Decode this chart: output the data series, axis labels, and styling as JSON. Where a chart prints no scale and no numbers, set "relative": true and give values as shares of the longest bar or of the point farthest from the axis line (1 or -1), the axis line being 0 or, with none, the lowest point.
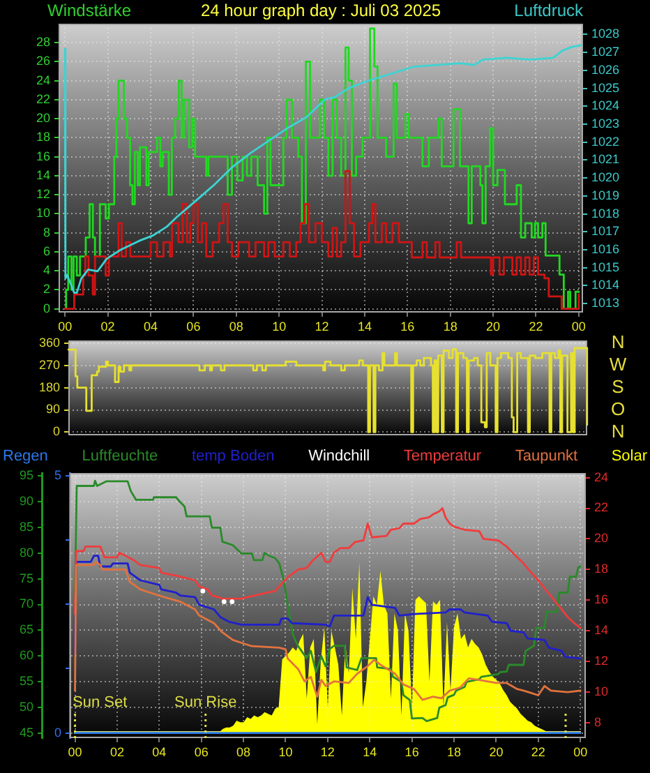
{
  "chart_data": [
    {
      "type": "step",
      "title": "24 hour graph day : Juli 03 2025",
      "ylabel": "Windstärke",
      "y2label": "Luftdruck",
      "xlim": [
        -0.3,
        24.2
      ],
      "xticks": [
        {
          "value": 0,
          "label": "00"
        },
        {
          "value": 2,
          "label": "02"
        },
        {
          "value": 4,
          "label": "04"
        },
        {
          "value": 6,
          "label": "06"
        },
        {
          "value": 8,
          "label": "08"
        },
        {
          "value": 10,
          "label": "10"
        },
        {
          "value": 12,
          "label": "12"
        },
        {
          "value": 14,
          "label": "14"
        },
        {
          "value": 16,
          "label": "16"
        },
        {
          "value": 18,
          "label": "18"
        },
        {
          "value": 20,
          "label": "20"
        },
        {
          "value": 22,
          "label": "22"
        },
        {
          "value": 24,
          "label": "00"
        }
      ],
      "ylim": [
        -0.4,
        30
      ],
      "yticks": [
        0,
        2,
        4,
        6,
        8,
        10,
        12,
        14,
        16,
        18,
        20,
        22,
        24,
        26,
        28
      ],
      "y2lim": [
        1012.5,
        1028.6
      ],
      "y2ticks": [
        1013,
        1014,
        1015,
        1016,
        1017,
        1018,
        1019,
        1020,
        1021,
        1022,
        1023,
        1024,
        1025,
        1026,
        1027,
        1028
      ],
      "grid": true,
      "series": [
        {
          "color": "#22d822",
          "x": [
            0,
            0.05,
            0.15,
            0.3,
            0.4,
            0.55,
            0.7,
            0.97,
            1.15,
            1.3,
            1.4,
            1.63,
            1.9,
            2.05,
            2.3,
            2.4,
            2.5,
            2.75,
            2.9,
            3.04,
            3.15,
            3.26,
            3.4,
            3.5,
            3.8,
            3.91,
            4.3,
            4.45,
            4.56,
            4.85,
            4.99,
            5.15,
            5.32,
            5.45,
            5.55,
            5.8,
            5.95,
            6.08,
            6.6,
            6.7,
            7.6,
            7.8,
            8.05,
            8.3,
            8.5,
            8.7,
            9.0,
            9.3,
            9.45,
            9.6,
            10.2,
            10.35,
            10.6,
            10.9,
            11.07,
            11.25,
            11.45,
            11.9,
            12.1,
            12.3,
            12.5,
            12.7,
            12.9,
            13.1,
            13.25,
            13.4,
            13.6,
            13.9,
            14.25,
            14.45,
            14.6,
            15.0,
            15.35,
            15.5,
            15.9,
            16.05,
            16.7,
            17.0,
            17.45,
            17.6,
            18.15,
            18.45,
            18.85,
            19.0,
            19.4,
            19.5,
            19.65,
            19.85,
            20.0,
            20.2,
            20.55,
            21.1,
            21.3,
            21.5,
            21.8,
            21.95,
            22.1,
            22.3,
            22.45,
            23.1,
            23.3,
            23.5,
            23.6,
            23.85,
            24.0
          ],
          "values": [
            0,
            2,
            5.5,
            2,
            5.5,
            3.5,
            5.5,
            7.5,
            11,
            7.5,
            5.5,
            11,
            9.5,
            11,
            16,
            20,
            24,
            20,
            18,
            13,
            11,
            16.5,
            13,
            17,
            13,
            16.5,
            18,
            15,
            16.5,
            12,
            18,
            20,
            24,
            18,
            22,
            17,
            20,
            16,
            14,
            16,
            12,
            16,
            13.5,
            16,
            14,
            16,
            13,
            10,
            18,
            13,
            18,
            22,
            18,
            16,
            9,
            26,
            18,
            22,
            18,
            14,
            22,
            18,
            14,
            27.5,
            24,
            14,
            16,
            18,
            29.5,
            25.5,
            18,
            16,
            23.7,
            18,
            20.5,
            18,
            15,
            18,
            20,
            15,
            21,
            15,
            9,
            15,
            13,
            9,
            15,
            19,
            13,
            14.6,
            11,
            13,
            7.5,
            9,
            7.5,
            9,
            7.5,
            9,
            5.6,
            3.6,
            0,
            1.8,
            0,
            1.8,
            1.8
          ]
        },
        {
          "color": "#d01414",
          "x": [
            0,
            0.43,
            0.85,
            0.95,
            1.1,
            1.3,
            1.4,
            1.9,
            2.05,
            2.5,
            2.65,
            2.85,
            3.05,
            4.0,
            4.3,
            4.6,
            4.9,
            5.0,
            5.3,
            5.5,
            5.7,
            5.85,
            6.0,
            6.2,
            6.4,
            6.6,
            6.9,
            7.2,
            7.4,
            7.6,
            7.8,
            8.1,
            8.6,
            8.9,
            9.3,
            9.5,
            9.8,
            10.2,
            10.5,
            10.8,
            11.0,
            11.2,
            11.4,
            11.7,
            12.0,
            12.3,
            12.5,
            12.7,
            12.9,
            13.1,
            13.3,
            13.5,
            13.8,
            14.2,
            14.35,
            14.5,
            14.8,
            15.0,
            15.3,
            15.6,
            16.2,
            16.7,
            16.9,
            17.3,
            17.5,
            18.3,
            18.5,
            19.9,
            20.0,
            20.3,
            20.5,
            20.9,
            21.1,
            21.3,
            21.5,
            21.7,
            21.9,
            22.1,
            22.4,
            22.6,
            23.2,
            24.0
          ],
          "values": [
            0,
            1.5,
            3.5,
            5.5,
            3.5,
            1.5,
            5.5,
            3.5,
            5.5,
            9,
            5.5,
            7,
            5.5,
            7,
            5.5,
            7,
            5.5,
            9,
            7,
            11,
            7,
            9,
            11,
            7,
            9,
            5.5,
            7,
            9,
            11,
            7,
            5.5,
            7,
            5.5,
            7,
            5.5,
            7,
            5.5,
            7,
            5.5,
            7,
            9,
            11,
            7,
            9,
            7,
            5.5,
            8.5,
            5.5,
            7,
            14.5,
            9,
            5.5,
            7,
            9,
            11,
            7,
            9,
            7,
            9,
            7,
            5.4,
            7,
            5.4,
            7,
            5.4,
            7,
            5.4,
            3.6,
            5.4,
            3.6,
            5.4,
            3.6,
            5.4,
            3.6,
            5.4,
            3.6,
            5.4,
            3.6,
            3.2,
            1.3,
            0,
            1.5
          ]
        },
        {
          "type": "line",
          "axis": "y2",
          "color": "#3cd4d4",
          "x": [
            0,
            0.02,
            0.1,
            0.43,
            0.55,
            0.76,
            1.08,
            1.52,
            1.95,
            2.6,
            3.47,
            4.12,
            4.77,
            5.2,
            6.08,
            6.95,
            7.81,
            8.68,
            9.55,
            10.42,
            11.29,
            12.16,
            12.59,
            13.24,
            14.11,
            15.2,
            16.28,
            17.37,
            18.46,
            19.11,
            19.53,
            20.63,
            21.71,
            22.8,
            23.23,
            23.67,
            24.1
          ],
          "values": [
            1027.2,
            1014.4,
            1014.6,
            1013.6,
            1013.6,
            1014.4,
            1014.9,
            1014.8,
            1015.5,
            1016.0,
            1016.5,
            1016.8,
            1017.3,
            1017.8,
            1018.7,
            1019.6,
            1020.6,
            1021.4,
            1022.1,
            1022.8,
            1023.4,
            1024.4,
            1024.5,
            1025.0,
            1025.4,
            1025.8,
            1026.2,
            1026.3,
            1026.4,
            1026.3,
            1026.6,
            1026.7,
            1026.6,
            1026.7,
            1027.1,
            1027.3,
            1027.4
          ]
        }
      ]
    },
    {
      "type": "step",
      "ylim": [
        -13,
        371
      ],
      "yticks": [
        0,
        90,
        180,
        270,
        360
      ],
      "annotations": [
        "N",
        "W",
        "S",
        "O",
        "N"
      ],
      "grid": "y",
      "categories": [
        null,
        null,
        null,
        null,
        null,
        null,
        null,
        null,
        null,
        null,
        null,
        null,
        null,
        null,
        null,
        null,
        null,
        null,
        null,
        null,
        null,
        null,
        null,
        null,
        null,
        null,
        null,
        null,
        null,
        null,
        null,
        null,
        null,
        null,
        null,
        null,
        null,
        null,
        null,
        null,
        null,
        null,
        null,
        null,
        null,
        null,
        null,
        null,
        null,
        null,
        null,
        null,
        null,
        null,
        null,
        null,
        null,
        null,
        null,
        null,
        null,
        null,
        null,
        null,
        null,
        null,
        null,
        null,
        null,
        null,
        null,
        null,
        null,
        null,
        null,
        null,
        null,
        null,
        null,
        null,
        null,
        null,
        null,
        null,
        null,
        null,
        null,
        null,
        null,
        null,
        null,
        null,
        null,
        null,
        null,
        null,
        null,
        null,
        null,
        null,
        null,
        null,
        null,
        null,
        null,
        null,
        null,
        null,
        null,
        null,
        null,
        null,
        null,
        null,
        null,
        null,
        null,
        null,
        null,
        null,
        null,
        null,
        null,
        null,
        null,
        null,
        null,
        null,
        null,
        null,
        null,
        null,
        null,
        null,
        null,
        null,
        null,
        null,
        null,
        null,
        null,
        null,
        null,
        null,
        null,
        null,
        null,
        null,
        null,
        null,
        null,
        null,
        null,
        null,
        null,
        null,
        null,
        null,
        null,
        null,
        null,
        null,
        null,
        null,
        null,
        null,
        null,
        null,
        null,
        null,
        null,
        null,
        null,
        null,
        null,
        null,
        null,
        null,
        null,
        null,
        null,
        null,
        null,
        null,
        null,
        null,
        null,
        null,
        null,
        null,
        null,
        null,
        null,
        null,
        null,
        null,
        null,
        null,
        null,
        null,
        null,
        null,
        null,
        null,
        null,
        null,
        null,
        null,
        null,
        null,
        null,
        null,
        null,
        null,
        null,
        null,
        null,
        null,
        null,
        null,
        null,
        null,
        null,
        null,
        null,
        null,
        null,
        null,
        null,
        null,
        null,
        null,
        null,
        null,
        null,
        null,
        null,
        null,
        null,
        null,
        null,
        null,
        null,
        null,
        null,
        null,
        null,
        null,
        null,
        null,
        null,
        null,
        null,
        null,
        null,
        null,
        null,
        null,
        null,
        null,
        null,
        null,
        null,
        null,
        null,
        null,
        null,
        null,
        null,
        null,
        null,
        null,
        null,
        null,
        null,
        null,
        null,
        null,
        null,
        null,
        null,
        null,
        null,
        null,
        null,
        null,
        null,
        null,
        null,
        null
      ],
      "series": [
        {
          "color": "#e6e030",
          "values": [
            334,
            334,
            334,
            334,
            226,
            180,
            180,
            180,
            180,
            180,
            86,
            86,
            86,
            230,
            230,
            230,
            245,
            265,
            265,
            265,
            265,
            285,
            270,
            270,
            270,
            270,
            203,
            203,
            265,
            245,
            245,
            270,
            270,
            270,
            250,
            270,
            270,
            270,
            270,
            270,
            270,
            270,
            270,
            270,
            270,
            270,
            270,
            270,
            270,
            270,
            270,
            270,
            270,
            270,
            270,
            270,
            270,
            270,
            270,
            270,
            270,
            270,
            270,
            270,
            270,
            270,
            270,
            270,
            270,
            270,
            270,
            270,
            270,
            250,
            250,
            250,
            270,
            270,
            270,
            250,
            270,
            270,
            270,
            270,
            270,
            250,
            250,
            270,
            270,
            270,
            270,
            270,
            270,
            270,
            270,
            270,
            270,
            270,
            270,
            270,
            270,
            270,
            270,
            250,
            250,
            270,
            270,
            270,
            250,
            250,
            270,
            270,
            270,
            270,
            270,
            270,
            270,
            270,
            270,
            270,
            270,
            285,
            285,
            285,
            285,
            285,
            285,
            270,
            270,
            270,
            270,
            270,
            270,
            270,
            270,
            270,
            270,
            270,
            270,
            270,
            270,
            270,
            250,
            285,
            285,
            285,
            270,
            270,
            270,
            270,
            270,
            270,
            250,
            250,
            270,
            270,
            270,
            270,
            270,
            270,
            270,
            270,
            290,
            290,
            270,
            270,
            270,
            0,
            270,
            270,
            0,
            270,
            270,
            250,
            250,
            320,
            270,
            270,
            270,
            270,
            270,
            270,
            320,
            270,
            270,
            270,
            270,
            270,
            270,
            270,
            270,
            0,
            270,
            270,
            290,
            290,
            270,
            270,
            300,
            300,
            300,
            300,
            270,
            0,
            290,
            0,
            310,
            310,
            0,
            330,
            330,
            330,
            300,
            300,
            335,
            335,
            0,
            320,
            320,
            320,
            300,
            300,
            0,
            290,
            290,
            290,
            300,
            300,
            270,
            270,
            40,
            40,
            20,
            320,
            320,
            270,
            270,
            270,
            0,
            300,
            300,
            320,
            320,
            320,
            320,
            300,
            300,
            60,
            0,
            0,
            320,
            320,
            300,
            300,
            300,
            300,
            0,
            310,
            310,
            310,
            300,
            300,
            300,
            300,
            320,
            320,
            320,
            320,
            0,
            320,
            320,
            300,
            300,
            330,
            0,
            310,
            310,
            310,
            0,
            0,
            320,
            0,
            340,
            340,
            340,
            340,
            340,
            340,
            340,
            30
          ]
        }
      ]
    },
    {
      "type": "line",
      "legend": "top",
      "xlim": [
        -0.25,
        24.26
      ],
      "xticks": [
        {
          "value": 0,
          "label": "00"
        },
        {
          "value": 2,
          "label": "02"
        },
        {
          "value": 4,
          "label": "04"
        },
        {
          "value": 6,
          "label": "06"
        },
        {
          "value": 8,
          "label": "08"
        },
        {
          "value": 10,
          "label": "10"
        },
        {
          "value": 12,
          "label": "12"
        },
        {
          "value": 14,
          "label": "14"
        },
        {
          "value": 16,
          "label": "16"
        },
        {
          "value": 18,
          "label": "18"
        },
        {
          "value": 20,
          "label": "20"
        },
        {
          "value": 22,
          "label": "22"
        },
        {
          "value": 24,
          "label": "00"
        }
      ],
      "ylim": [
        44.1,
        95.5
      ],
      "yticks": [
        45,
        50,
        55,
        60,
        65,
        70,
        75,
        80,
        85,
        90,
        95
      ],
      "y2lim": [
        7,
        24.3
      ],
      "y2ticks": [
        8,
        10,
        12,
        14,
        16,
        18,
        20,
        22,
        24
      ],
      "y3lim": [
        -0.1,
        5.05
      ],
      "y3ticks": [
        0,
        {
          "value": 1.25,
          "label": null
        },
        {
          "value": 2.5,
          "label": null
        },
        {
          "value": 3.75,
          "label": null
        },
        5
      ],
      "grid": true,
      "ref_lines": [
        {
          "axis": "x",
          "value": 0,
          "label": "Sun Set",
          "color": "#dede48",
          "line_style": "dotted"
        },
        {
          "axis": "x",
          "value": 6.2,
          "label": "Sun Rise",
          "color": "#dede48",
          "line_style": "dotted"
        },
        {
          "axis": "x",
          "value": 23.3,
          "label": null,
          "color": "#dede48",
          "line_style": "dotted"
        }
      ],
      "series": [
        {
          "name": "Regen",
          "color": "#2a78e8",
          "axis": "y3",
          "x": [
            0,
            24
          ],
          "values": [
            0,
            0
          ]
        },
        {
          "name": "Luftfeuchte",
          "color": "#2a8a2a",
          "x": [
            0,
            0.08,
            0.9,
            0.95,
            1.05,
            1.5,
            2.5,
            2.65,
            2.9,
            3.7,
            3.75,
            4.8,
            4.9,
            5.2,
            5.3,
            6.4,
            6.5,
            6.9,
            7.0,
            7.5,
            7.9,
            8.4,
            8.5,
            8.9,
            9.0,
            9.2,
            9.5,
            9.7,
            9.9,
            10.1,
            10.35,
            10.6,
            11.0,
            11.2,
            11.45,
            11.7,
            11.9,
            12.1,
            12.3,
            12.8,
            12.9,
            13.4,
            13.6,
            14.3,
            14.35,
            15.0,
            15.1,
            15.5,
            15.6,
            15.9,
            16.0,
            16.5,
            16.7,
            17.2,
            17.3,
            17.6,
            17.7,
            18.0,
            18.1,
            18.5,
            18.6,
            19.2,
            19.3,
            20.1,
            20.2,
            20.5,
            20.6,
            21.3,
            21.4,
            21.8,
            21.9,
            22.3,
            22.4,
            22.9,
            23.0,
            23.4,
            23.5,
            23.8,
            23.9,
            24.0
          ],
          "values": [
            72.3,
            93,
            93,
            94,
            93,
            93.9,
            93.9,
            92,
            90.3,
            90.3,
            90.8,
            90.8,
            90.3,
            89,
            87.1,
            87.1,
            84.9,
            84.9,
            82.2,
            81.5,
            79.9,
            79.9,
            78.6,
            78.6,
            80,
            79.5,
            79,
            78,
            75,
            70,
            64.1,
            61.9,
            59.6,
            61,
            56.9,
            60,
            58,
            61.4,
            62,
            62,
            57.8,
            57.3,
            59.6,
            59.6,
            57.8,
            57.5,
            56,
            55,
            52.4,
            51.5,
            47.9,
            48,
            47.4,
            48,
            50,
            50.5,
            52,
            52.5,
            53.3,
            54,
            55,
            55.5,
            56,
            56.5,
            56.9,
            57,
            58.3,
            58.3,
            61,
            62,
            65.5,
            65.5,
            68.6,
            68.6,
            72.3,
            72.3,
            75.4,
            75.4,
            77.2,
            77.4
          ]
        },
        {
          "name": "temp Boden",
          "color": "#2020cc",
          "axis": "y2",
          "x": [
            0,
            0.05,
            0.75,
            0.9,
            1.1,
            1.2,
            1.7,
            1.8,
            2.5,
            2.6,
            3.1,
            4.0,
            4.1,
            4.8,
            5.0,
            5.7,
            5.9,
            6.6,
            6.9,
            7.3,
            7.9,
            9.7,
            9.8,
            10.1,
            10.3,
            11.9,
            12.1,
            12.3,
            13.7,
            13.9,
            14.1,
            15.2,
            15.4,
            16.1,
            17.6,
            17.8,
            18.3,
            18.5,
            19.6,
            19.8,
            20.5,
            20.7,
            21.3,
            21.5,
            22.3,
            22.5,
            23.1,
            23.3,
            24.0
          ],
          "values": [
            12.5,
            18.5,
            18.5,
            18.9,
            18.9,
            18.2,
            18.2,
            18.4,
            18.4,
            17.8,
            17.3,
            17.0,
            16.7,
            16.5,
            16.3,
            16.2,
            15.7,
            15.4,
            14.9,
            14.6,
            14.4,
            14.4,
            14.8,
            14.8,
            14.5,
            14.4,
            14.3,
            15.0,
            15.0,
            16.2,
            15.7,
            15.5,
            15.0,
            15.1,
            15.2,
            15.4,
            15.4,
            15.2,
            15.0,
            14.6,
            14.5,
            14.0,
            13.9,
            13.5,
            13.4,
            12.9,
            12.7,
            12.3,
            12.2
          ]
        },
        {
          "name": "Windchill",
          "type": "scatter",
          "marker": "circle",
          "color": "#ffffff",
          "axis": "y2",
          "x": [
            6.07,
            7.08,
            7.46
          ],
          "values": [
            16.6,
            15.9,
            15.9
          ]
        },
        {
          "name": "Temperatur",
          "color": "#f03c3c",
          "axis": "y2",
          "x": [
            0,
            0.05,
            0.4,
            0.5,
            1.2,
            1.4,
            2.0,
            2.1,
            2.4,
            2.8,
            3.1,
            4.0,
            4.1,
            4.8,
            5.7,
            5.9,
            6.3,
            6.5,
            6.8,
            7.0,
            7.9,
            8.2,
            8.8,
            9.5,
            9.7,
            10.1,
            10.6,
            11.0,
            11.3,
            11.7,
            11.9,
            12.1,
            12.3,
            12.6,
            13.0,
            13.3,
            13.7,
            13.9,
            14.1,
            14.8,
            15.0,
            15.4,
            15.6,
            16.1,
            16.4,
            16.8,
            17.0,
            17.3,
            17.45,
            17.6,
            17.8,
            18.0,
            18.5,
            19.2,
            19.4,
            20.1,
            20.3,
            20.5,
            21.0,
            21.3,
            21.6,
            22.0,
            22.4,
            22.7,
            23.0,
            23.4,
            23.8,
            24.0
          ],
          "values": [
            15.1,
            19.2,
            19.2,
            19.5,
            19.5,
            18.8,
            18.8,
            19.1,
            18.9,
            18.6,
            18.3,
            18.1,
            17.8,
            17.6,
            17.3,
            16.9,
            16.7,
            16.3,
            16.2,
            16.1,
            16.1,
            16.2,
            16.4,
            16.6,
            16.9,
            17.5,
            18,
            18.1,
            18.6,
            19.1,
            18.5,
            18.5,
            19.1,
            19.4,
            19.4,
            19.8,
            19.9,
            21,
            20.1,
            20.2,
            20.6,
            20.7,
            21,
            21,
            21.3,
            21.4,
            21.6,
            21.8,
            22,
            21.4,
            21,
            20.8,
            20.6,
            20.5,
            20,
            19.9,
            19.7,
            19.5,
            18.8,
            18.4,
            17.9,
            17.3,
            16.6,
            16.1,
            15.6,
            14.9,
            14.4,
            14.2
          ]
        },
        {
          "name": "Taupunkt",
          "color": "#e2733e",
          "axis": "y2",
          "x": [
            0,
            0.05,
            0.9,
            1.0,
            1.2,
            1.3,
            2.4,
            2.6,
            3.1,
            4.0,
            5.0,
            5.7,
            5.9,
            6.6,
            7.0,
            7.5,
            8.4,
            9.7,
            10.0,
            10.1,
            10.6,
            10.9,
            11.2,
            11.5,
            11.7,
            11.9,
            12.3,
            13.0,
            13.4,
            13.9,
            14.2,
            14.5,
            15.2,
            15.6,
            16.1,
            16.5,
            17.0,
            17.4,
            17.8,
            18.3,
            18.7,
            19.2,
            20.0,
            20.5,
            21.0,
            21.3,
            22.0,
            22.3,
            22.6,
            23.4,
            24.0
          ],
          "values": [
            10.1,
            18.3,
            18.3,
            18.5,
            18.3,
            18.0,
            18.0,
            17.2,
            16.7,
            16.3,
            15.9,
            15.4,
            15.0,
            14.5,
            13.9,
            13.4,
            13.0,
            12.9,
            12.8,
            12.2,
            11.5,
            10.7,
            11.0,
            9.7,
            10.8,
            10.4,
            10.7,
            10.6,
            11.2,
            11.7,
            12.1,
            11.8,
            11.2,
            10.5,
            10.2,
            9.5,
            9.7,
            9.6,
            10.1,
            10.3,
            10.9,
            10.8,
            10.6,
            10.6,
            10.2,
            10.1,
            9.8,
            10.4,
            10.1,
            10.0,
            10.1
          ]
        }
      ]
    },
    {
      "type": "area",
      "relative": true,
      "legend": "top",
      "categories": [
        null,
        null,
        null,
        null,
        null,
        null,
        null,
        null,
        null,
        null,
        null,
        null,
        null,
        null,
        null,
        null,
        null,
        null,
        null,
        null,
        null,
        null,
        null,
        null,
        null,
        null,
        null,
        null,
        null,
        null,
        null,
        null,
        null,
        null,
        null,
        null,
        null,
        null,
        null,
        null,
        null,
        null,
        null,
        null,
        null,
        null,
        null,
        null,
        null,
        null,
        null,
        null,
        null,
        null,
        null,
        null,
        null,
        null,
        null,
        null,
        null,
        null,
        null,
        null,
        null,
        null,
        null,
        null,
        null,
        null,
        null,
        null,
        null,
        null,
        null,
        null,
        null,
        null,
        null,
        null,
        null,
        null,
        null,
        null,
        null,
        null,
        null,
        null,
        null,
        null,
        null,
        null,
        null,
        null,
        null,
        null,
        null,
        null,
        null,
        null,
        null,
        null,
        null,
        null,
        null,
        null,
        null,
        null,
        null,
        null,
        null,
        null,
        null,
        null,
        null,
        null,
        null,
        null,
        null,
        null,
        null,
        null,
        null,
        null,
        null,
        null,
        null,
        null,
        null,
        null,
        null,
        null,
        null,
        null,
        null,
        null,
        null,
        null,
        null,
        null,
        null,
        null,
        null,
        null,
        null
      ],
      "series": [
        {
          "name": "Solar",
          "color": "#ffff00",
          "values": [
            0,
            0,
            0,
            0,
            0,
            0,
            0,
            0,
            0,
            0,
            0,
            0,
            0,
            0,
            0,
            0,
            0,
            0,
            0,
            0,
            0,
            0,
            0,
            0,
            0,
            0,
            0,
            0,
            0,
            0,
            0,
            0,
            0,
            0,
            0,
            0,
            0,
            0,
            0,
            0,
            0,
            0,
            0.02,
            0.03,
            0.03,
            0.04,
            0.07,
            0.06,
            0.06,
            0.09,
            0.08,
            0.1,
            0.09,
            0.1,
            0.12,
            0.11,
            0.1,
            0.14,
            0.15,
            0.43,
            0.45,
            0.47,
            0.5,
            0.48,
            0.54,
            0.58,
            0.2,
            0.5,
            0.55,
            0.05,
            0.42,
            0.62,
            0.15,
            0.6,
            0.5,
            0.4,
            0.1,
            0.52,
            0.35,
            0.85,
            0.55,
            1,
            0.15,
            0.3,
            0.55,
            0.8,
            0.75,
            0.95,
            0.75,
            0.7,
            0.2,
            0.7,
            0.6,
            0.1,
            0.7,
            0.6,
            0.15,
            0.78,
            0.8,
            0.78,
            0.76,
            0.3,
            0.77,
            0.75,
            0.78,
            0.15,
            0.65,
            0.25,
            0.62,
            0.7,
            0.55,
            0.58,
            0.5,
            0.55,
            0.52,
            0.5,
            0.46,
            0.4,
            0.36,
            0.33,
            0.31,
            0.29,
            0.25,
            0.22,
            0.18,
            0.16,
            0.14,
            0.11,
            0.09,
            0.07,
            0.06,
            0.04,
            0.03,
            0.02,
            0.01,
            0,
            0,
            0,
            0,
            0,
            0,
            0,
            0,
            0,
            0
          ]
        }
      ]
    }
  ]
}
